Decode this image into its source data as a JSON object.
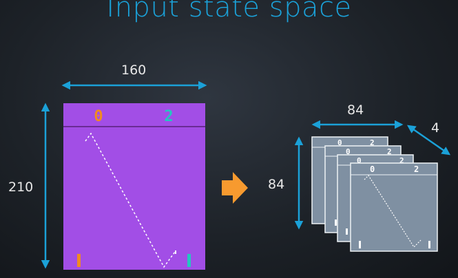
{
  "title": "Input state space",
  "input": {
    "width_label": "160",
    "height_label": "210",
    "score_left": "0",
    "score_right": "2",
    "colors": {
      "background": "#a24ee6",
      "header_line": "#6a2b95",
      "left_score": "#f08a22",
      "right_score": "#25c6c0",
      "left_paddle": "#f08a22",
      "right_paddle": "#25c6c0"
    }
  },
  "output": {
    "width_label": "84",
    "height_label": "84",
    "depth_label": "4",
    "frame_count": 4,
    "score_left": "0",
    "score_right": "2",
    "colors": {
      "frame": "#7f90a2",
      "border": "#eef2f5"
    }
  },
  "accent_colors": {
    "arrows": "#1ba1d8",
    "transform_arrow": "#f79a2f"
  }
}
